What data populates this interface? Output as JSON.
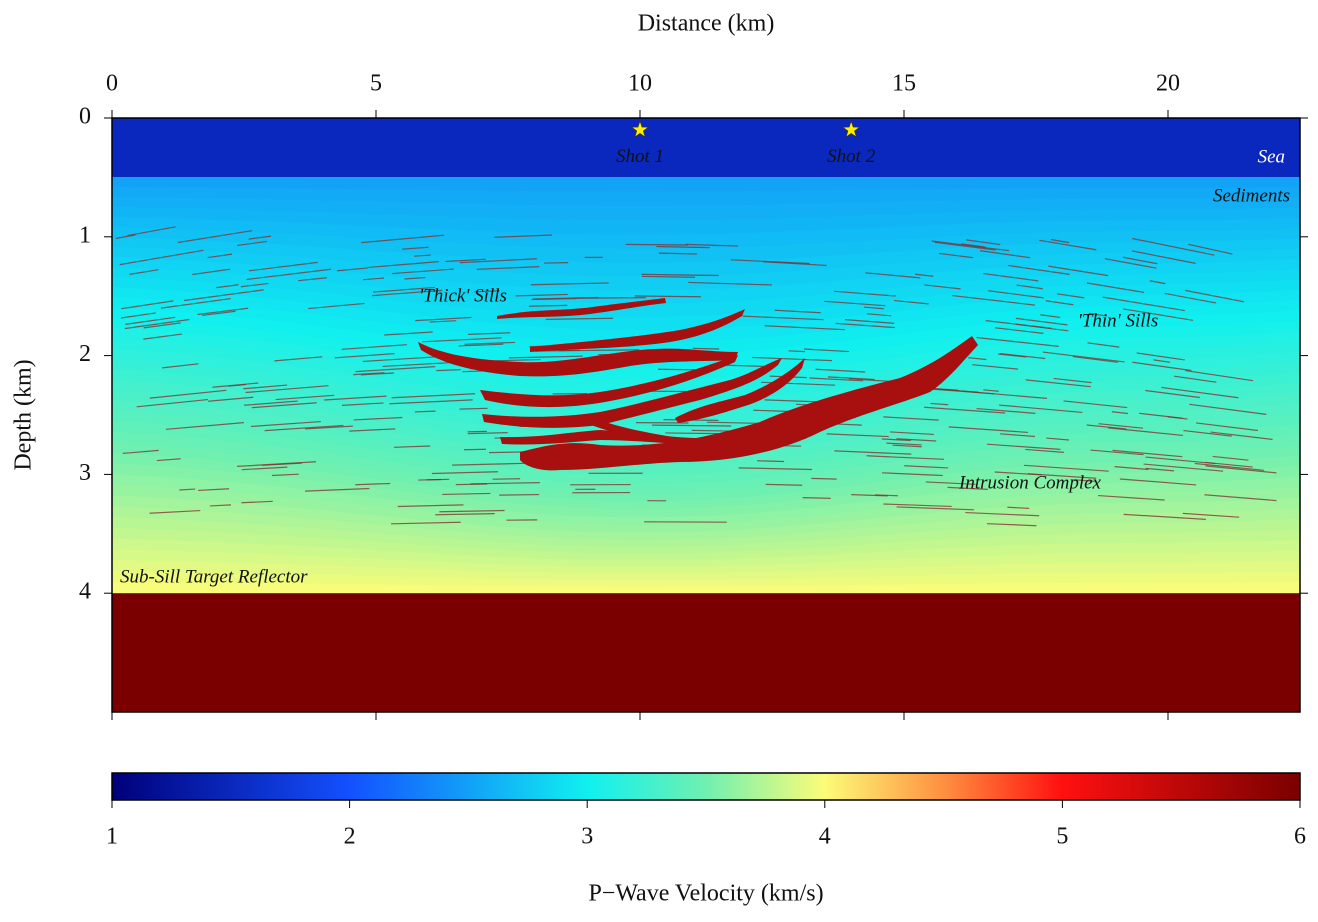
{
  "chart_data": {
    "type": "velocity-model",
    "x_label": "Distance (km)",
    "y_label": "Depth (km)",
    "xlim": [
      0,
      22.5
    ],
    "ylim": [
      0,
      5
    ],
    "xticks": [
      0,
      5,
      10,
      15,
      20
    ],
    "yticks": [
      0,
      1,
      2,
      3,
      4
    ],
    "layers": [
      {
        "label": "Sea",
        "top": 0,
        "bottom": 0.5,
        "velocity": 1.5
      },
      {
        "label": "Sediments",
        "top": 0.5,
        "bottom": 4,
        "velocity_top": 2.5,
        "velocity_bottom": 4
      },
      {
        "label": "Sub-Sill Target Reflector",
        "top": 4,
        "bottom": 5,
        "velocity": 6
      }
    ],
    "shots": [
      {
        "label": "Shot 1",
        "x": 10,
        "depth": 0.1
      },
      {
        "label": "Shot 2",
        "x": 14,
        "depth": 0.1
      }
    ],
    "annotations": [
      "'Thick' Sills",
      "'Thin' Sills",
      "Intrusion Complex"
    ],
    "colorbar": {
      "label": "P−Wave Velocity (km/s)",
      "lim": [
        1,
        6
      ],
      "ticks": [
        1,
        2,
        3,
        4,
        5,
        6
      ],
      "colormap": [
        {
          "value": 1,
          "color": "#00007a"
        },
        {
          "value": 2,
          "color": "#1450ff"
        },
        {
          "value": 3,
          "color": "#10f0f0"
        },
        {
          "value": 3.5,
          "color": "#70f0b0"
        },
        {
          "value": 4,
          "color": "#fcfc78"
        },
        {
          "value": 4.5,
          "color": "#ff9040"
        },
        {
          "value": 5,
          "color": "#ff1010"
        },
        {
          "value": 6,
          "color": "#7a0000"
        }
      ]
    }
  }
}
